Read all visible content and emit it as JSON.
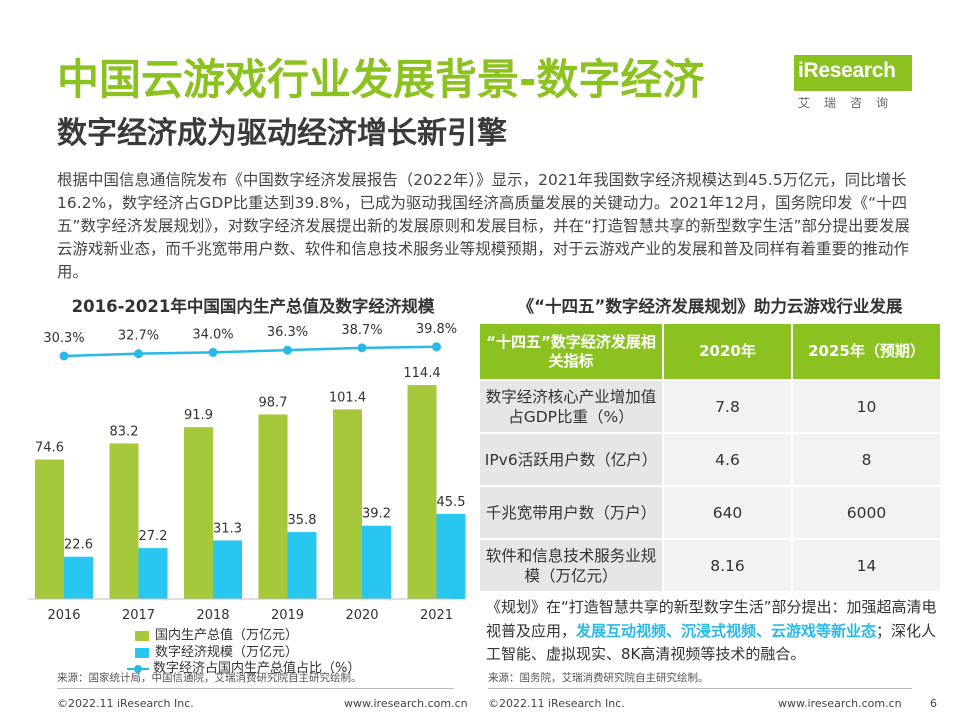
{
  "header": {
    "title": "中国云游戏行业发展背景-数字经济",
    "subtitle": "数字经济成为驱动经济增长新引擎",
    "intro": "根据中国信息通信院发布《中国数字经济发展报告（2022年）》显示，2021年我国数字经济规模达到45.5万亿元，同比增长16.2%，数字经济占GDP比重达到39.8%，已成为驱动我国经济高质量发展的关键动力。2021年12月，国务院印发《“十四五”数字经济发展规划》，对数字经济发展提出新的发展原则和发展目标，并在“打造智慧共享的新型数字生活”部分提出要发展云游戏新业态，而千兆宽带用户数、软件和信息技术服务业等规模预期，对于云游戏产业的发展和普及同样有着重要的推动作用。"
  },
  "logo": {
    "text": "iResearch",
    "sub": "艾瑞咨询",
    "color": "#8bc220"
  },
  "colors": {
    "accent": "#8bc220",
    "blue": "#29b9e6"
  },
  "left_panel": {
    "title": "2016-2021年中国国内生产总值及数字经济规模",
    "source": "来源：国家统计局，中国信通院，艾瑞消费研究院自主研究绘制。"
  },
  "chart_data": {
    "type": "bar",
    "title": "2016-2021年中国国内生产总值及数字经济规模",
    "categories": [
      "2016",
      "2017",
      "2018",
      "2019",
      "2020",
      "2021"
    ],
    "series": [
      {
        "name": "国内生产总值（万亿元）",
        "type": "bar",
        "color": "#a5c93a",
        "values": [
          74.6,
          83.2,
          91.9,
          98.7,
          101.4,
          114.4
        ]
      },
      {
        "name": "数字经济规模（万亿元）",
        "type": "bar",
        "color": "#29c6ef",
        "values": [
          22.6,
          27.2,
          31.3,
          35.8,
          39.2,
          45.5
        ]
      },
      {
        "name": "数字经济占国内生产总值占比（%）",
        "type": "line",
        "color": "#29b9e6",
        "values": [
          30.3,
          32.7,
          34.0,
          36.3,
          38.7,
          39.8
        ],
        "labels": [
          "30.3%",
          "32.7%",
          "34.0%",
          "36.3%",
          "38.7%",
          "39.8%"
        ]
      }
    ],
    "xlabel": "",
    "ylabel": "",
    "ylim": [
      0,
      120
    ],
    "grid": false,
    "legend": "bottom"
  },
  "right_panel": {
    "title": "《“十四五”数字经济发展规划》助力云游戏行业发展",
    "table": {
      "headers": [
        "“十四五”数字经济发展相关指标",
        "2020年",
        "2025年（预期）"
      ],
      "rows": [
        [
          "数字经济核心产业增加值占GDP比重（%）",
          "7.8",
          "10"
        ],
        [
          "IPv6活跃用户数（亿户）",
          "4.6",
          "8"
        ],
        [
          "千兆宽带用户数（万户）",
          "640",
          "6000"
        ],
        [
          "软件和信息技术服务业规模（万亿元）",
          "8.16",
          "14"
        ]
      ]
    },
    "note": {
      "prefix": "《规划》在“打造智慧共享的新型数字生活”部分提出：加强超高清电视普及应用，",
      "highlight": "发展互动视频、沉浸式视频、云游戏等新业态",
      "suffix": "；深化人工智能、虚拟现实、8K高清视频等技术的融合。"
    },
    "source": "来源：国务院，艾瑞消费研究院自主研究绘制。"
  },
  "footer": {
    "left_copyright": "©2022.11 iResearch Inc.",
    "left_url": "www.iresearch.com.cn",
    "right_copyright": "©2022.11 iResearch Inc.",
    "right_url": "www.iresearch.com.cn",
    "page": "6"
  }
}
